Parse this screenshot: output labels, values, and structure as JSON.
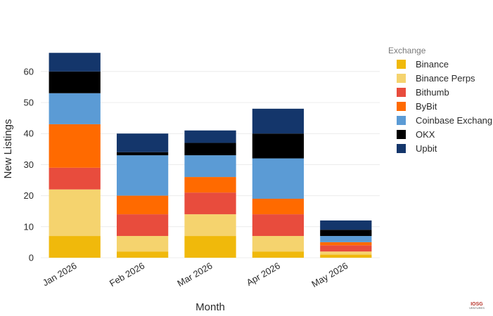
{
  "chart_data": {
    "type": "bar",
    "stacked": true,
    "title": "",
    "xlabel": "Month",
    "ylabel": "New Listings",
    "ylim": [
      0,
      69
    ],
    "yticks": [
      0,
      10,
      20,
      30,
      40,
      50,
      60
    ],
    "grid": true,
    "legend_title": "Exchange",
    "legend_position": "right",
    "categories": [
      "Jan 2026",
      "Feb 2026",
      "Mar 2026",
      "Apr 2026",
      "May 2026"
    ],
    "series": [
      {
        "name": "Binance",
        "color": "#F0B90B",
        "values": [
          7,
          2,
          7,
          2,
          1
        ]
      },
      {
        "name": "Binance Perps",
        "color": "#F5D36E",
        "values": [
          15,
          5,
          7,
          5,
          1
        ]
      },
      {
        "name": "Bithumb",
        "color": "#E84C3D",
        "values": [
          7,
          7,
          7,
          7,
          2
        ]
      },
      {
        "name": "ByBit",
        "color": "#FF6A00",
        "values": [
          14,
          6,
          5,
          5,
          1
        ]
      },
      {
        "name": "Coinbase Exchang",
        "color": "#5B9BD5",
        "values": [
          10,
          13,
          7,
          13,
          2
        ]
      },
      {
        "name": "OKX",
        "color": "#000000",
        "values": [
          7,
          1,
          4,
          8,
          2
        ]
      },
      {
        "name": "Upbit",
        "color": "#14366B",
        "values": [
          6,
          6,
          4,
          8,
          3
        ]
      }
    ]
  },
  "watermark": {
    "text": "IOSG",
    "subtext": "VENTURES"
  }
}
